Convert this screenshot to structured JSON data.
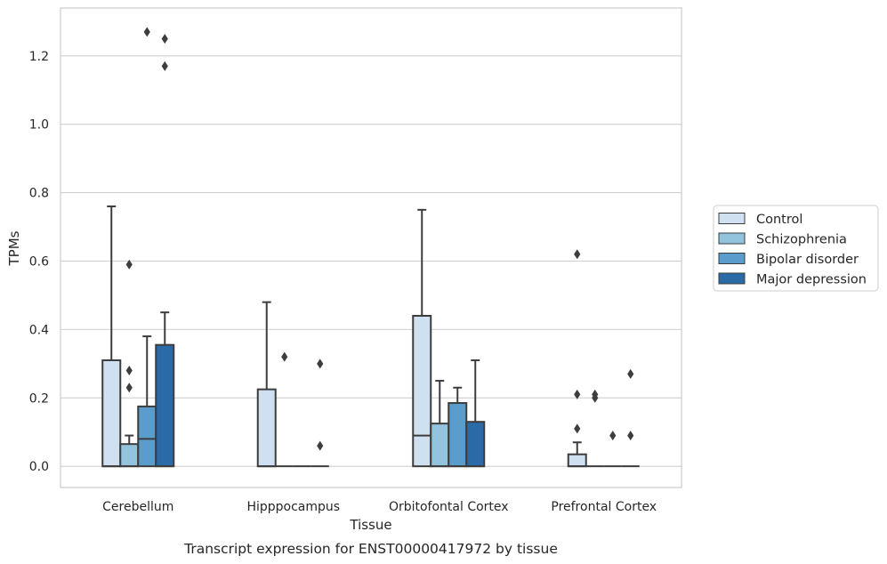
{
  "chart_data": {
    "type": "box",
    "title": "",
    "caption": "Transcript expression for ENST00000417972 by tissue",
    "xlabel": "Tissue",
    "ylabel": "TPMs",
    "ylim": [
      -0.062,
      1.34
    ],
    "yticks": [
      0.0,
      0.2,
      0.4,
      0.6,
      0.8,
      1.0,
      1.2
    ],
    "ytick_labels": [
      "0.0",
      "0.2",
      "0.4",
      "0.6",
      "0.8",
      "1.0",
      "1.2"
    ],
    "grid": "horizontal",
    "legend_position": "right",
    "categories": [
      "Cerebellum",
      "Hipppocampus",
      "Orbitofontal Cortex",
      "Prefrontal Cortex"
    ],
    "series": [
      {
        "name": "Control",
        "color": "#cfe0f0",
        "boxes": [
          {
            "q1": 0,
            "median": 0,
            "q3": 0.31,
            "whisker_low": 0,
            "whisker_high": 0.76,
            "outliers": []
          },
          {
            "q1": 0,
            "median": 0,
            "q3": 0.225,
            "whisker_low": 0,
            "whisker_high": 0.48,
            "outliers": []
          },
          {
            "q1": 0,
            "median": 0.09,
            "q3": 0.44,
            "whisker_low": 0,
            "whisker_high": 0.75,
            "outliers": []
          },
          {
            "q1": 0,
            "median": 0,
            "q3": 0.035,
            "whisker_low": 0,
            "whisker_high": 0.07,
            "outliers": [
              0.11,
              0.21,
              0.62
            ]
          }
        ]
      },
      {
        "name": "Schizophrenia",
        "color": "#93c4de",
        "boxes": [
          {
            "q1": 0,
            "median": 0,
            "q3": 0.065,
            "whisker_low": 0,
            "whisker_high": 0.09,
            "outliers": [
              0.23,
              0.28,
              0.59
            ]
          },
          {
            "q1": 0,
            "median": 0,
            "q3": 0,
            "whisker_low": 0,
            "whisker_high": 0,
            "outliers": [
              0.32
            ]
          },
          {
            "q1": 0,
            "median": 0,
            "q3": 0.125,
            "whisker_low": 0,
            "whisker_high": 0.25,
            "outliers": []
          },
          {
            "q1": 0,
            "median": 0,
            "q3": 0,
            "whisker_low": 0,
            "whisker_high": 0,
            "outliers": [
              0.2,
              0.21
            ]
          }
        ]
      },
      {
        "name": "Bipolar disorder",
        "color": "#5a9ccc",
        "boxes": [
          {
            "q1": 0,
            "median": 0.08,
            "q3": 0.175,
            "whisker_low": 0,
            "whisker_high": 0.38,
            "outliers": [
              1.27
            ]
          },
          {
            "q1": 0,
            "median": 0,
            "q3": 0,
            "whisker_low": 0,
            "whisker_high": 0,
            "outliers": []
          },
          {
            "q1": 0,
            "median": 0,
            "q3": 0.185,
            "whisker_low": 0,
            "whisker_high": 0.23,
            "outliers": []
          },
          {
            "q1": 0,
            "median": 0,
            "q3": 0,
            "whisker_low": 0,
            "whisker_high": 0,
            "outliers": [
              0.09
            ]
          }
        ]
      },
      {
        "name": "Major depression",
        "color": "#2a6aa6",
        "boxes": [
          {
            "q1": 0,
            "median": 0,
            "q3": 0.355,
            "whisker_low": 0,
            "whisker_high": 0.45,
            "outliers": [
              1.17,
              1.25
            ]
          },
          {
            "q1": 0,
            "median": 0,
            "q3": 0,
            "whisker_low": 0,
            "whisker_high": 0,
            "outliers": [
              0.06,
              0.3
            ]
          },
          {
            "q1": 0,
            "median": 0,
            "q3": 0.13,
            "whisker_low": 0,
            "whisker_high": 0.31,
            "outliers": []
          },
          {
            "q1": 0,
            "median": 0,
            "q3": 0,
            "whisker_low": 0,
            "whisker_high": 0,
            "outliers": [
              0.09,
              0.27
            ]
          }
        ]
      }
    ]
  }
}
